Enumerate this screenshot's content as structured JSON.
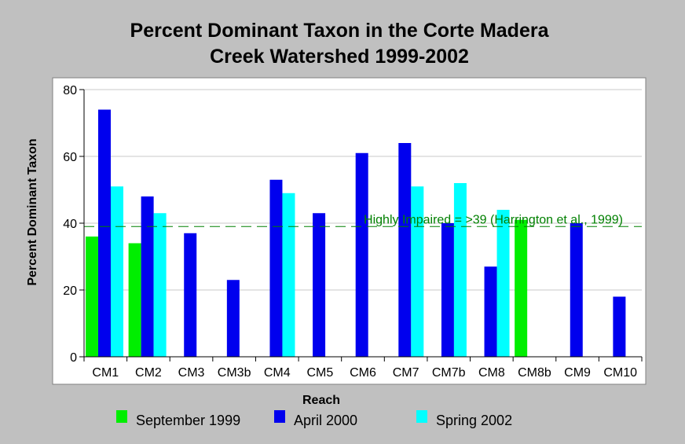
{
  "chart_data": {
    "type": "bar",
    "title_lines": [
      "Percent Dominant Taxon in the Corte Madera",
      "Creek Watershed 1999-2002"
    ],
    "xlabel": "Reach",
    "ylabel": "Percent Dominant Taxon",
    "ylim": [
      0,
      80
    ],
    "yticks": [
      0,
      20,
      40,
      60,
      80
    ],
    "grid": true,
    "legend_position": "bottom",
    "categories": [
      "CM1",
      "CM2",
      "CM3",
      "CM3b",
      "CM4",
      "CM5",
      "CM6",
      "CM7",
      "CM7b",
      "CM8",
      "CM8b",
      "CM9",
      "CM10"
    ],
    "series": [
      {
        "name": "September 1999",
        "color": "#00ee00",
        "values": [
          36,
          34,
          null,
          null,
          null,
          null,
          null,
          null,
          null,
          null,
          41,
          null,
          null
        ]
      },
      {
        "name": "April 2000",
        "color": "#0000ee",
        "values": [
          74,
          48,
          37,
          23,
          53,
          43,
          61,
          64,
          40,
          27,
          null,
          40,
          18
        ]
      },
      {
        "name": "Spring 2002",
        "color": "#00ffff",
        "values": [
          51,
          43,
          null,
          null,
          49,
          null,
          null,
          51,
          52,
          44,
          null,
          null,
          null
        ]
      }
    ],
    "reference_line": {
      "value": 39,
      "label": "Highly Impaired = >39 (Harrington et al., 1999)",
      "color": "#008000"
    }
  }
}
